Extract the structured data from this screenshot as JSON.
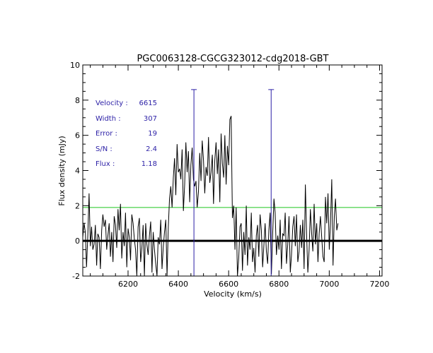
{
  "chart_data": {
    "type": "line",
    "title": "PGC0063128-CGCG323012-cdg2018-GBT",
    "xlabel": "Velocity (km/s)",
    "ylabel": "Flux density (mJy)",
    "xlim": [
      6020,
      7210
    ],
    "ylim": [
      -2,
      10
    ],
    "xticks": [
      6200,
      6400,
      6600,
      6800,
      7000,
      7200
    ],
    "xtick_labels": [
      "6200",
      "6400",
      "6600",
      "6800",
      "7000",
      "7200"
    ],
    "yticks": [
      -2,
      0,
      2,
      4,
      6,
      8,
      10
    ],
    "ytick_labels": [
      "-2",
      "0",
      "2",
      "4",
      "6",
      "8",
      "10"
    ],
    "grid": false,
    "annotations": [
      {
        "label": "Velocity :",
        "value": "6615"
      },
      {
        "label": "Width :",
        "value": "307"
      },
      {
        "label": "Error :",
        "value": "19"
      },
      {
        "label": "S/N :",
        "value": "2.4"
      },
      {
        "label": "Flux :",
        "value": "1.18"
      }
    ],
    "reference_lines": {
      "zero_level": 0,
      "noise_level": 1.9,
      "window_low": 6462,
      "window_high": 6769
    },
    "series": [
      {
        "x_start": 6020,
        "x_step": 5,
        "values": [
          0.2,
          1.0,
          0.5,
          -1.5,
          0.3,
          2.7,
          -0.3,
          0.8,
          -0.5,
          -0.2,
          0.9,
          -1.4,
          0.4,
          0.2,
          -1.6,
          0.6,
          1.5,
          0.8,
          1.2,
          -0.5,
          0.3,
          1.0,
          -0.9,
          0.5,
          -1.2,
          1.4,
          0.9,
          -0.4,
          1.8,
          0.6,
          2.1,
          -1.0,
          0.5,
          -0.3,
          1.6,
          -1.5,
          0.7,
          0.2,
          -1.1,
          1.5,
          1.0,
          0.1,
          -0.5,
          -2.0,
          0.8,
          1.3,
          -1.2,
          -0.4,
          0.9,
          -2.0,
          1.0,
          -0.2,
          -0.8,
          0.3,
          1.1,
          -1.8,
          0.5,
          -0.5,
          -1.3,
          -2.0,
          0.2,
          -0.2,
          1.2,
          -1.6,
          -0.4,
          0.5,
          1.2,
          -2.0,
          0.8,
          2.4,
          3.1,
          1.9,
          3.6,
          4.7,
          2.6,
          5.5,
          3.9,
          4.1,
          3.5,
          5.2,
          1.7,
          3.2,
          5.6,
          3.9,
          5.1,
          2.2,
          4.3,
          5.3,
          3.5,
          3.1,
          3.4,
          1.9,
          2.8,
          5.0,
          3.4,
          5.7,
          4.6,
          2.7,
          4.2,
          3.7,
          5.9,
          3.3,
          3.9,
          4.9,
          2.1,
          4.6,
          5.6,
          3.8,
          5.2,
          2.2,
          6.1,
          4.4,
          3.6,
          6.0,
          3.2,
          5.4,
          4.3,
          6.9,
          7.1,
          1.3,
          2.0,
          -0.5,
          1.9,
          -2.0,
          -1.0,
          0.8,
          1.0,
          -1.7,
          0.5,
          -0.8,
          2.0,
          -1.4,
          0.2,
          -0.5,
          1.6,
          -1.2,
          -0.4,
          -1.8,
          0.3,
          0.9,
          -0.9,
          1.5,
          0.6,
          -1.5,
          -0.3,
          1.0,
          -0.6,
          -1.3,
          0.6,
          1.6,
          -1.9,
          0.4,
          2.4,
          1.6,
          -0.8,
          0.3,
          -0.5,
          1.2,
          -1.6,
          0.4,
          0.3,
          1.6,
          -1.3,
          -0.2,
          1.4,
          -1.8,
          -0.8,
          0.8,
          1.4,
          -0.3,
          1.5,
          -1.2,
          -0.6,
          0.9,
          -0.4,
          1.2,
          -1.6,
          3.2,
          0.3,
          -1.8,
          -0.5,
          1.8,
          0.4,
          -0.6,
          2.1,
          -0.2,
          1.0,
          -1.2,
          0.4,
          1.4,
          0.2,
          -0.9,
          -1.2,
          2.5,
          1.0,
          2.7,
          -0.5,
          1.0,
          3.5,
          -1.4,
          1.4,
          2.4,
          0.6,
          1.0
        ]
      }
    ]
  }
}
